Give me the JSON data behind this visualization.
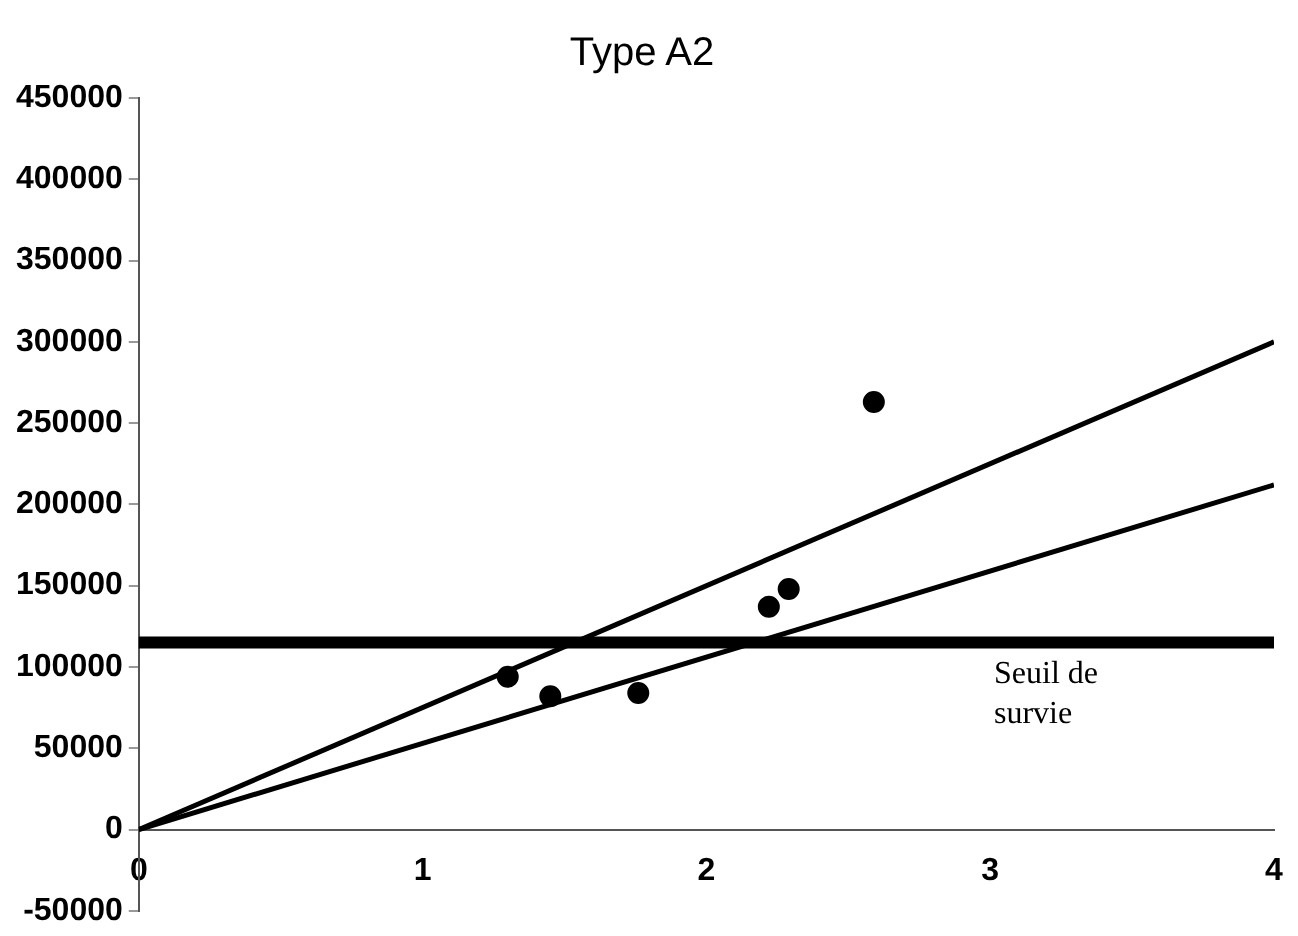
{
  "chart_data": {
    "type": "scatter",
    "title": "Type A2",
    "xlim": [
      0,
      4
    ],
    "xticks": [
      0,
      1,
      2,
      3,
      4
    ],
    "ylim": [
      -50000,
      450000
    ],
    "yticks": [
      -50000,
      0,
      50000,
      100000,
      150000,
      200000,
      250000,
      300000,
      350000,
      400000,
      450000
    ],
    "grid": false,
    "legend": false,
    "series": [
      {
        "marker": "circle",
        "color": "#000000",
        "x": [
          1.3,
          1.45,
          1.76,
          2.22,
          2.29,
          2.59
        ],
        "values": [
          94000,
          82000,
          84000,
          137000,
          148000,
          263000
        ]
      },
      {
        "type": "line",
        "marker": "none",
        "color": "#000000",
        "x": [
          0,
          4
        ],
        "values": [
          0,
          300000
        ]
      },
      {
        "type": "line",
        "marker": "none",
        "color": "#000000",
        "x": [
          0,
          4
        ],
        "values": [
          0,
          212000
        ]
      }
    ],
    "ref_lines": [
      {
        "axis": "y",
        "value": 115000,
        "label": "Seuil de survie",
        "color": "#000000"
      }
    ]
  }
}
